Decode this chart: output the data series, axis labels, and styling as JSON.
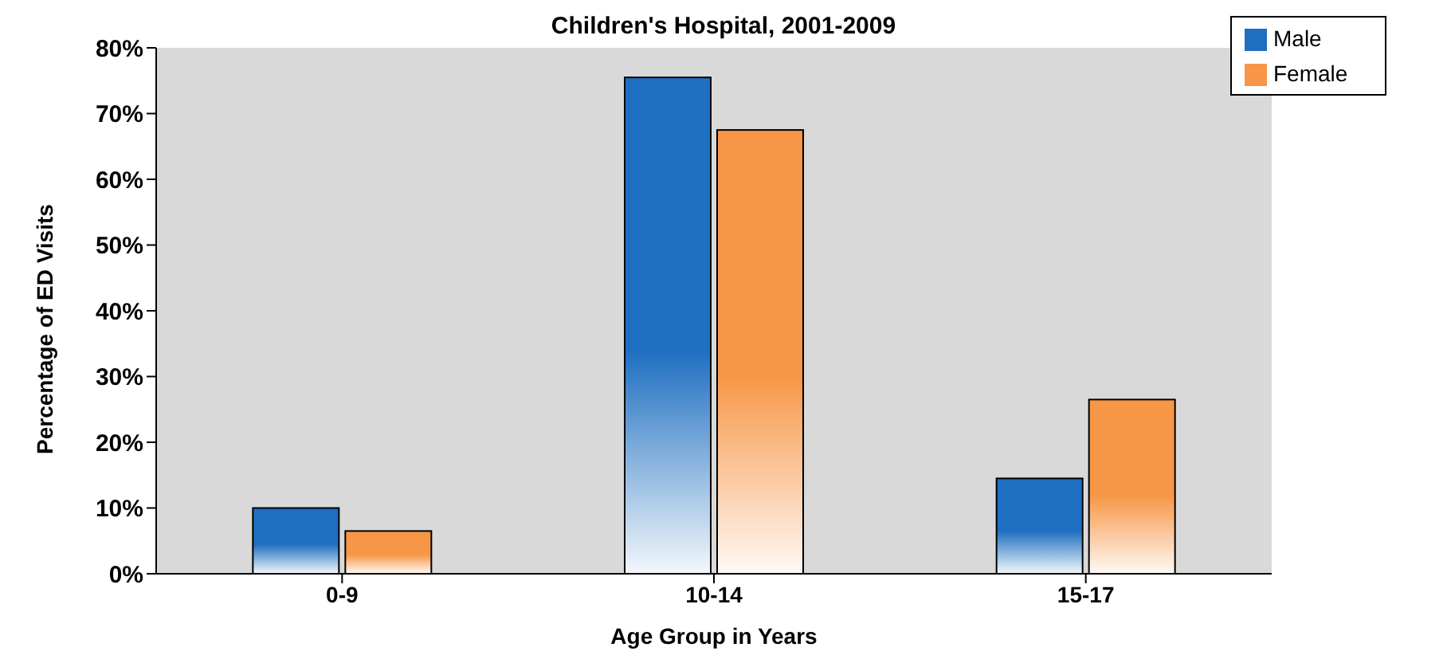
{
  "chart_data": {
    "type": "bar",
    "title": "Children's Hospital, 2001-2009",
    "xlabel": "Age Group in Years",
    "ylabel": "Percentage of ED Visits",
    "categories": [
      "0-9",
      "10-14",
      "15-17"
    ],
    "series": [
      {
        "name": "Male",
        "color": "#1e6fc1",
        "values": [
          10,
          75.5,
          14.5
        ]
      },
      {
        "name": "Female",
        "color": "#f79646",
        "values": [
          6.5,
          67.5,
          26.5
        ]
      }
    ],
    "ylim": [
      0,
      80
    ],
    "yticks": [
      {
        "value": 0,
        "label": "0%"
      },
      {
        "value": 10,
        "label": "10%"
      },
      {
        "value": 20,
        "label": "20%"
      },
      {
        "value": 30,
        "label": "30%"
      },
      {
        "value": 40,
        "label": "40%"
      },
      {
        "value": 50,
        "label": "50%"
      },
      {
        "value": 60,
        "label": "60%"
      },
      {
        "value": 70,
        "label": "70%"
      },
      {
        "value": 80,
        "label": "80%"
      }
    ],
    "grid": false,
    "legend": "top right"
  }
}
